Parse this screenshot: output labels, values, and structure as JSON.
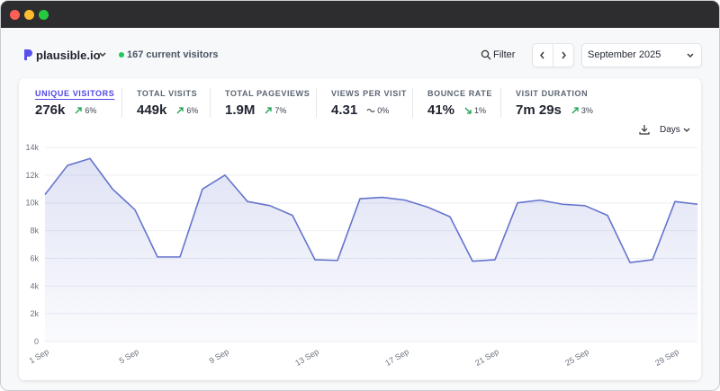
{
  "header": {
    "site": "plausible.io",
    "current_visitors": "167 current visitors",
    "filter": "Filter",
    "period": "September 2025"
  },
  "metrics": [
    {
      "label": "UNIQUE VISITORS",
      "value": "276k",
      "change": "6%"
    },
    {
      "label": "TOTAL VISITS",
      "value": "449k",
      "change": "6%"
    },
    {
      "label": "TOTAL PAGEVIEWS",
      "value": "1.9M",
      "change": "7%"
    },
    {
      "label": "VIEWS PER VISIT",
      "value": "4.31",
      "change": "0%"
    },
    {
      "label": "BOUNCE RATE",
      "value": "41%",
      "change": "1%"
    },
    {
      "label": "VISIT DURATION",
      "value": "7m 29s",
      "change": "3%"
    }
  ],
  "interval": "Days",
  "chart_data": {
    "type": "line",
    "categories": [
      "1 Sep",
      null,
      null,
      null,
      "5 Sep",
      null,
      null,
      null,
      "9 Sep",
      null,
      null,
      null,
      "13 Sep",
      null,
      null,
      null,
      "17 Sep",
      null,
      null,
      null,
      "21 Sep",
      null,
      null,
      null,
      "25 Sep",
      null,
      null,
      null,
      "29 Sep",
      null
    ],
    "series": [
      {
        "color": "#6574cd",
        "values": [
          10600,
          12700,
          13200,
          11000,
          9500,
          6100,
          6100,
          11000,
          12000,
          10100,
          9800,
          9100,
          5900,
          5850,
          10300,
          10400,
          10200,
          9700,
          9000,
          5800,
          5900,
          10000,
          10200,
          9900,
          9800,
          9100,
          5700,
          5900,
          10100,
          9900
        ]
      }
    ],
    "ylim": [
      0,
      14000
    ],
    "yticks": [
      0,
      {
        "value": 2000,
        "label": "2k"
      },
      {
        "value": 4000,
        "label": "4k"
      },
      {
        "value": 6000,
        "label": "6k"
      },
      {
        "value": 8000,
        "label": "8k"
      },
      {
        "value": 10000,
        "label": "10k"
      },
      {
        "value": 12000,
        "label": "12k"
      },
      {
        "value": 14000,
        "label": "14k"
      }
    ],
    "grid": true
  }
}
